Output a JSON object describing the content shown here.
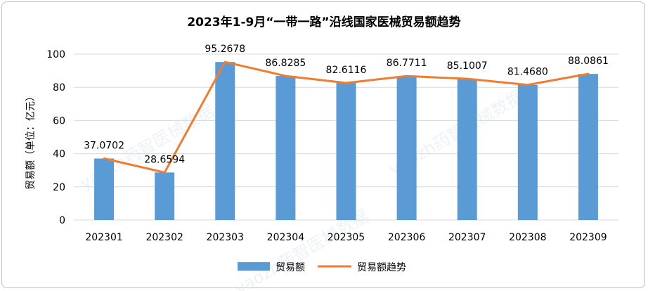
{
  "chart_data": {
    "type": "bar",
    "title": "2023年1-9月“一带一路”沿线国家医械贸易额趋势",
    "xlabel": "",
    "ylabel": "贸易额（单位：亿元）",
    "categories": [
      "202301",
      "202302",
      "202303",
      "202304",
      "202305",
      "202306",
      "202307",
      "202308",
      "202309"
    ],
    "series": [
      {
        "name": "贸易额",
        "type": "bar",
        "color": "#5b9bd5",
        "values": [
          37.0702,
          28.6594,
          95.2678,
          86.8285,
          82.6116,
          86.7711,
          85.1007,
          81.468,
          88.0861
        ]
      },
      {
        "name": "贸易额趋势",
        "type": "line",
        "color": "#ed7d31",
        "values": [
          37.0702,
          28.6594,
          95.2678,
          86.8285,
          82.6116,
          86.7711,
          85.1007,
          81.468,
          88.0861
        ]
      }
    ],
    "data_labels": [
      "37.0702",
      "28.6594",
      "95.2678",
      "86.8285",
      "82.6116",
      "86.7711",
      "85.1007",
      "81.4680",
      "88.0861"
    ],
    "y_ticks": [
      "0",
      "20",
      "40",
      "60",
      "80",
      "100"
    ],
    "ylim": [
      0,
      100
    ],
    "grid": true,
    "legend_position": "bottom"
  },
  "watermark": {
    "texts": [
      "yaozh药智医械数据",
      "yaozh药智医械数据",
      "yaozh药智医械数据"
    ]
  }
}
